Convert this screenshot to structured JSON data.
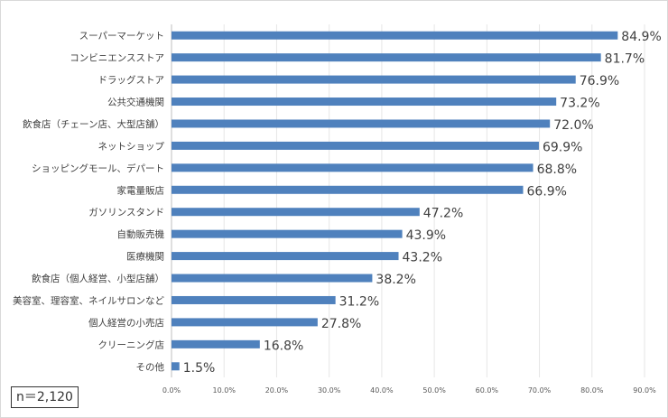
{
  "chart_data": {
    "type": "bar",
    "orientation": "horizontal",
    "categories": [
      "スーパーマーケット",
      "コンビニエンスストア",
      "ドラッグストア",
      "公共交通機関",
      "飲食店（チェーン店、大型店舗）",
      "ネットショップ",
      "ショッピングモール、デパート",
      "家電量販店",
      "ガソリンスタンド",
      "自動販売機",
      "医療機関",
      "飲食店（個人経営、小型店舗）",
      "美容室、理容室、ネイルサロンなど",
      "個人経営の小売店",
      "クリーニング店",
      "その他"
    ],
    "values": [
      84.9,
      81.7,
      76.9,
      73.2,
      72.0,
      69.9,
      68.8,
      66.9,
      47.2,
      43.9,
      43.2,
      38.2,
      31.2,
      27.8,
      16.8,
      1.5
    ],
    "data_labels": [
      "84.9%",
      "81.7%",
      "76.9%",
      "73.2%",
      "72.0%",
      "69.9%",
      "68.8%",
      "66.9%",
      "47.2%",
      "43.9%",
      "43.2%",
      "38.2%",
      "31.2%",
      "27.8%",
      "16.8%",
      "1.5%"
    ],
    "xlim": [
      0,
      90
    ],
    "x_ticks": [
      "0.0%",
      "10.0%",
      "20.0%",
      "30.0%",
      "40.0%",
      "50.0%",
      "60.0%",
      "70.0%",
      "80.0%",
      "90.0%"
    ],
    "bar_color": "#4f81bd",
    "grid": true,
    "annotation": "n＝2,120"
  }
}
